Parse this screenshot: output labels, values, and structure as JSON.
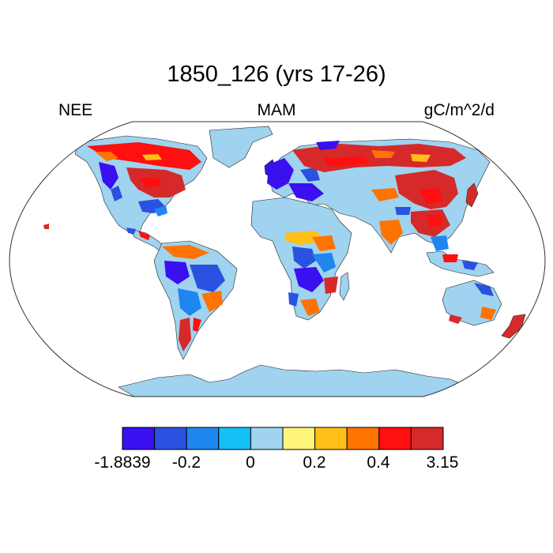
{
  "title": "1850_126 (yrs 17-26)",
  "left_label": "NEE",
  "center_label": "MAM",
  "right_label": "gC/m^2/d",
  "colorbar": {
    "colors": [
      "#3a0ff0",
      "#2a52e0",
      "#1f86f0",
      "#16bff5",
      "#9fd3ef",
      "#fff57a",
      "#ffbf16",
      "#ff7300",
      "#ff0f0f",
      "#d62a2a"
    ],
    "labels": [
      "-1.8839",
      "-0.2",
      "0",
      "0.2",
      "0.4",
      "3.15"
    ]
  },
  "map": {
    "projection": "robinson",
    "ocean_color": "#ffffff",
    "land_base_color": "#9fd3ef"
  }
}
